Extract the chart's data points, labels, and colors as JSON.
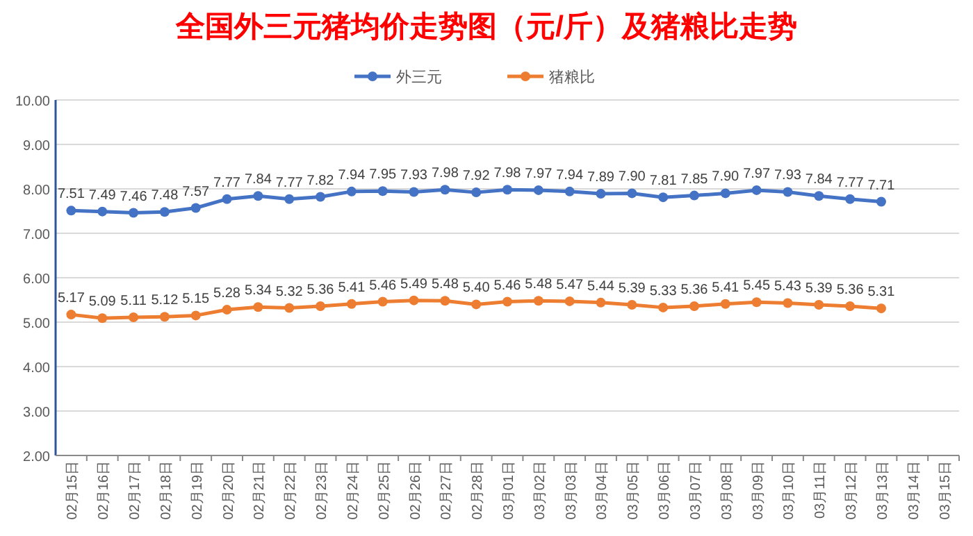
{
  "chart_data": {
    "type": "line",
    "title": "全国外三元猪均价走势图（元/斤）及猪粮比走势",
    "categories": [
      "02月15日",
      "02月16日",
      "02月17日",
      "02月18日",
      "02月19日",
      "02月20日",
      "02月21日",
      "02月22日",
      "02月23日",
      "02月24日",
      "02月25日",
      "02月26日",
      "02月27日",
      "02月28日",
      "03月01日",
      "03月02日",
      "03月03日",
      "03月04日",
      "03月05日",
      "03月06日",
      "03月07日",
      "03月08日",
      "03月09日",
      "03月10日",
      "03月11日",
      "03月12日",
      "03月13日",
      "03月14日",
      "03月15日"
    ],
    "series": [
      {
        "name": "外三元",
        "color": "#4472c4",
        "values": [
          7.51,
          7.49,
          7.46,
          7.48,
          7.57,
          7.77,
          7.84,
          7.77,
          7.82,
          7.94,
          7.95,
          7.93,
          7.98,
          7.92,
          7.98,
          7.97,
          7.94,
          7.89,
          7.9,
          7.81,
          7.85,
          7.9,
          7.97,
          7.93,
          7.84,
          7.77,
          7.71,
          null,
          null
        ],
        "value_labels": [
          "7.51",
          "7.49",
          "7.46",
          "7.48",
          "7.57",
          "7.77",
          "7.84",
          "7.77",
          "7.82",
          "7.94",
          "7.95",
          "7.93",
          "7.98",
          "7.92",
          "7.98",
          "7.97",
          "7.94",
          "7.89",
          "7.90",
          "7.81",
          "7.85",
          "7.90",
          "7.97",
          "7.93",
          "7.84",
          "7.77",
          "7.71",
          null,
          null
        ]
      },
      {
        "name": "猪粮比",
        "color": "#ed7d31",
        "values": [
          5.17,
          5.09,
          5.11,
          5.12,
          5.15,
          5.28,
          5.34,
          5.32,
          5.36,
          5.41,
          5.46,
          5.49,
          5.48,
          5.4,
          5.46,
          5.48,
          5.47,
          5.44,
          5.39,
          5.33,
          5.36,
          5.41,
          5.45,
          5.43,
          5.39,
          5.36,
          5.31,
          null,
          null
        ],
        "value_labels": [
          "5.17",
          "5.09",
          "5.11",
          "5.12",
          "5.15",
          "5.28",
          "5.34",
          "5.32",
          "5.36",
          "5.41",
          "5.46",
          "5.49",
          "5.48",
          "5.40",
          "5.46",
          "5.48",
          "5.47",
          "5.44",
          "5.39",
          "5.33",
          "5.36",
          "5.41",
          "5.45",
          "5.43",
          "5.39",
          "5.36",
          "5.31",
          null,
          null
        ]
      }
    ],
    "ylim": [
      2,
      10
    ],
    "yticks": [
      {
        "value": 2,
        "label": "2.00"
      },
      {
        "value": 3,
        "label": "3.00"
      },
      {
        "value": 4,
        "label": "4.00"
      },
      {
        "value": 5,
        "label": "5.00"
      },
      {
        "value": 6,
        "label": "6.00"
      },
      {
        "value": 7,
        "label": "7.00"
      },
      {
        "value": 8,
        "label": "8.00"
      },
      {
        "value": 9,
        "label": "9.00"
      },
      {
        "value": 10,
        "label": "10.00"
      }
    ],
    "grid": "y",
    "legend": "top",
    "marker": "circle"
  }
}
